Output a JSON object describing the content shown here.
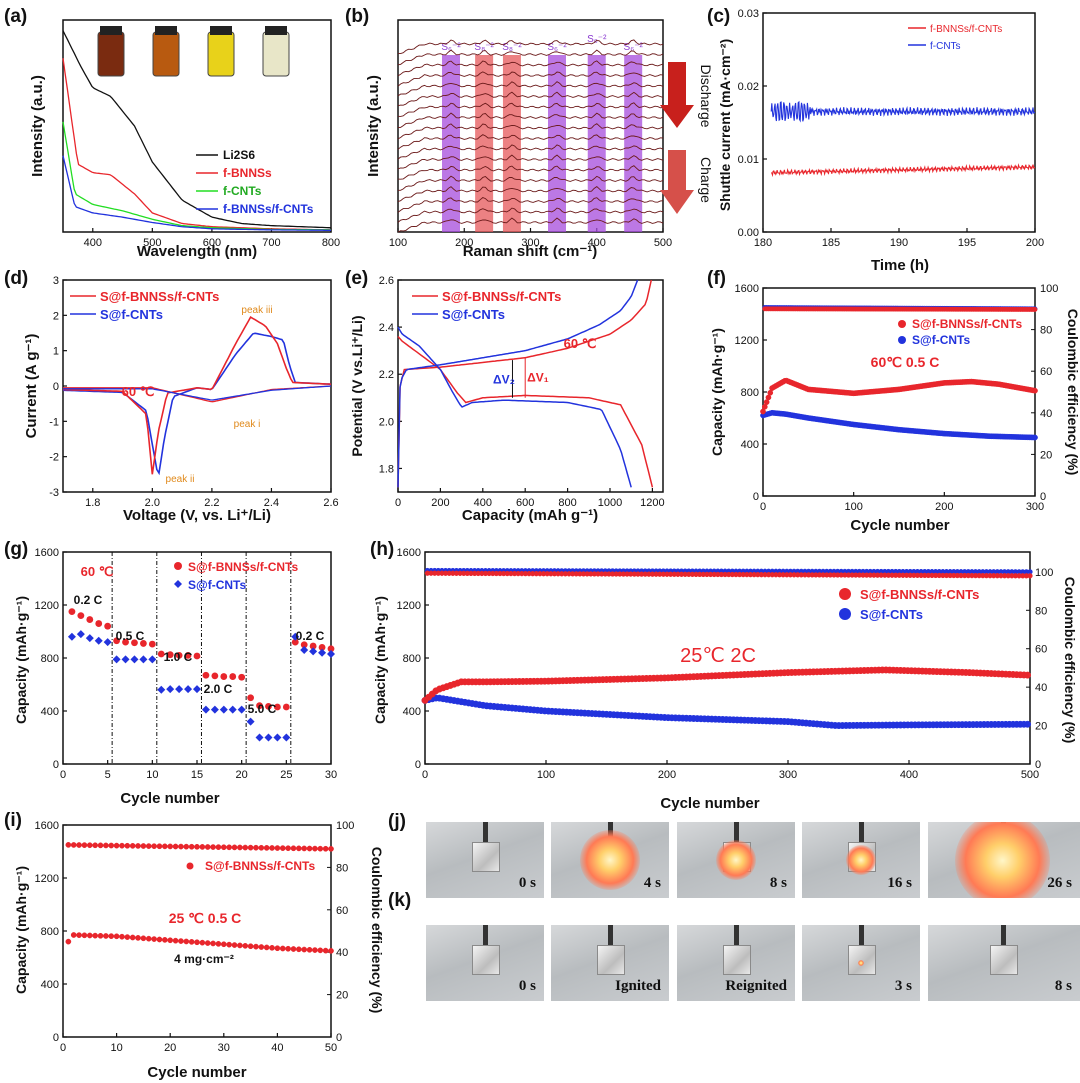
{
  "panels": {
    "a": {
      "label": "(a)",
      "xlabel": "Wavelength (nm)",
      "ylabel": "Intensity (a.u.)",
      "xticks": [
        "400",
        "500",
        "600",
        "700",
        "800"
      ],
      "legend": [
        "Li2S6",
        "f-BNNSs",
        "f-CNTs",
        "f-BNNSs/f-CNTs"
      ]
    },
    "b": {
      "label": "(b)",
      "xlabel": "Raman shift (cm⁻¹)",
      "ylabel": "Intensity (a.u.)",
      "xticks": [
        "100",
        "200",
        "300",
        "400",
        "500"
      ],
      "band_labels": [
        "S₆⁻²",
        "S₈⁻²",
        "S₈⁻²",
        "S₆⁻²",
        "S₆⁻²",
        "S₆⁻²"
      ],
      "arrow_labels": [
        "Discharge",
        "Charge"
      ]
    },
    "c": {
      "label": "(c)",
      "xlabel": "Time (h)",
      "ylabel": "Shuttle current (mA·cm⁻²)",
      "xticks": [
        "180",
        "185",
        "190",
        "195",
        "200"
      ],
      "yticks": [
        "0.00",
        "0.01",
        "0.02",
        "0.03"
      ],
      "legend": [
        "f-BNNSs/f-CNTs",
        "f-CNTs"
      ]
    },
    "d": {
      "label": "(d)",
      "xlabel": "Voltage (V, vs. Li⁺/Li)",
      "ylabel": "Current (A g⁻¹)",
      "xticks": [
        "1.8",
        "2.0",
        "2.2",
        "2.4",
        "2.6"
      ],
      "yticks": [
        "-3",
        "-2",
        "-1",
        "0",
        "1",
        "2",
        "3"
      ],
      "legend": [
        "S@f-BNNSs/f-CNTs",
        "S@f-CNTs"
      ],
      "temp": "60 ℃",
      "peaks": [
        "peak iii",
        "peak i",
        "peak ii"
      ]
    },
    "e": {
      "label": "(e)",
      "xlabel": "Capacity (mAh g⁻¹)",
      "ylabel": "Potential (V vs.Li⁺/Li)",
      "xticks": [
        "0",
        "200",
        "400",
        "600",
        "800",
        "1000",
        "1200"
      ],
      "yticks": [
        "1.8",
        "2.0",
        "2.2",
        "2.4",
        "2.6"
      ],
      "legend": [
        "S@f-BNNSs/f-CNTs",
        "S@f-CNTs"
      ],
      "temp": "60 ℃",
      "dv2": "ΔV₂",
      "dv1": "ΔV₁"
    },
    "f": {
      "label": "(f)",
      "xlabel": "Cycle number",
      "ylabel": "Capacity (mAh·g⁻¹)",
      "ylabel2": "Coulombic efficiency (%)",
      "xticks": [
        "0",
        "100",
        "200",
        "300"
      ],
      "yticks": [
        "0",
        "400",
        "800",
        "1200",
        "1600"
      ],
      "y2ticks": [
        "0",
        "20",
        "40",
        "60",
        "80",
        "100"
      ],
      "legend": [
        "S@f-BNNSs/f-CNTs",
        "S@f-CNTs"
      ],
      "condition": "60℃ 0.5 C"
    },
    "g": {
      "label": "(g)",
      "xlabel": "Cycle number",
      "ylabel": "Capacity (mAh·g⁻¹)",
      "xticks": [
        "0",
        "5",
        "10",
        "15",
        "20",
        "25",
        "30"
      ],
      "yticks": [
        "0",
        "400",
        "800",
        "1200",
        "1600"
      ],
      "legend": [
        "S@f-BNNSs/f-CNTs",
        "S@f-CNTs"
      ],
      "temp": "60 ℃",
      "rates": [
        "0.2 C",
        "0.5 C",
        "1.0 C",
        "2.0 C",
        "5.0 C",
        "0.2 C"
      ]
    },
    "h": {
      "label": "(h)",
      "xlabel": "Cycle number",
      "ylabel": "Capacity (mAh·g⁻¹)",
      "ylabel2": "Coulombic efficiency (%)",
      "xticks": [
        "0",
        "100",
        "200",
        "300",
        "400",
        "500"
      ],
      "yticks": [
        "0",
        "400",
        "800",
        "1200",
        "1600"
      ],
      "y2ticks": [
        "0",
        "20",
        "40",
        "60",
        "80",
        "100"
      ],
      "legend": [
        "S@f-BNNSs/f-CNTs",
        "S@f-CNTs"
      ],
      "condition": "25℃ 2C"
    },
    "i": {
      "label": "(i)",
      "xlabel": "Cycle number",
      "ylabel": "Capacity (mAh·g⁻¹)",
      "ylabel2": "Coulombic efficiency (%)",
      "xticks": [
        "0",
        "10",
        "20",
        "30",
        "40",
        "50"
      ],
      "yticks": [
        "0",
        "400",
        "800",
        "1200",
        "1600"
      ],
      "y2ticks": [
        "0",
        "20",
        "40",
        "60",
        "80",
        "100"
      ],
      "legend": [
        "S@f-BNNSs/f-CNTs"
      ],
      "condition": "25 ℃ 0.5 C",
      "loading": "4 mg·cm⁻²"
    },
    "j": {
      "label": "(j)",
      "captions": [
        "0 s",
        "4 s",
        "8 s",
        "16 s",
        "26 s"
      ]
    },
    "k": {
      "label": "(k)",
      "captions": [
        "0 s",
        "Ignited",
        "Reignited",
        "3 s",
        "8 s"
      ]
    }
  },
  "colors": {
    "red": "#e8262c",
    "blue": "#2233dd",
    "green": "#22dd22",
    "black": "#111111",
    "purple": "#a64bdc",
    "salmon": "#e5575a"
  },
  "chart_data": [
    {
      "id": "a",
      "type": "line",
      "xlim": [
        350,
        800
      ],
      "series": [
        {
          "name": "Li2S6",
          "x": [
            350,
            380,
            400,
            430,
            470,
            500,
            550,
            600,
            650,
            700,
            800
          ],
          "y": [
            0.95,
            0.78,
            0.68,
            0.64,
            0.5,
            0.33,
            0.15,
            0.07,
            0.04,
            0.03,
            0.02
          ]
        },
        {
          "name": "f-BNNSs",
          "x": [
            350,
            375,
            400,
            430,
            470,
            500,
            550,
            600,
            700,
            800
          ],
          "y": [
            0.82,
            0.32,
            0.28,
            0.27,
            0.18,
            0.09,
            0.04,
            0.025,
            0.015,
            0.01
          ]
        },
        {
          "name": "f-CNTs",
          "x": [
            350,
            370,
            400,
            450,
            500,
            550,
            600,
            700,
            800
          ],
          "y": [
            0.52,
            0.18,
            0.13,
            0.1,
            0.06,
            0.03,
            0.02,
            0.012,
            0.01
          ]
        },
        {
          "name": "f-BNNSs/f-CNTs",
          "x": [
            350,
            370,
            400,
            450,
            500,
            550,
            600,
            700,
            800
          ],
          "y": [
            0.36,
            0.12,
            0.09,
            0.07,
            0.045,
            0.025,
            0.015,
            0.01,
            0.008
          ]
        }
      ]
    },
    {
      "id": "b",
      "type": "line",
      "xlim": [
        100,
        500
      ],
      "traces": 18,
      "bands_x": [
        180,
        230,
        272,
        340,
        400,
        455
      ]
    },
    {
      "id": "c",
      "type": "line",
      "xlim": [
        180,
        200
      ],
      "ylim": [
        0,
        0.03
      ],
      "series": [
        {
          "name": "f-BNNSs/f-CNTs",
          "mean": 0.0085
        },
        {
          "name": "f-CNTs",
          "mean": 0.0165
        }
      ]
    },
    {
      "id": "d",
      "type": "line",
      "xlim": [
        1.7,
        2.6
      ],
      "ylim": [
        -3,
        3
      ],
      "series": [
        {
          "name": "S@f-BNNSs/f-CNTs",
          "x": [
            1.7,
            1.9,
            1.98,
            2.0,
            2.02,
            2.05,
            2.15,
            2.2,
            2.28,
            2.33,
            2.38,
            2.42,
            2.45,
            2.47,
            2.6
          ],
          "y": [
            -0.1,
            -0.15,
            -0.8,
            -2.5,
            -1.3,
            -0.2,
            -0.05,
            -0.1,
            1.2,
            1.95,
            1.7,
            1.2,
            0.5,
            0.1,
            0.05
          ]
        },
        {
          "name": "S@f-CNTs",
          "x": [
            1.7,
            1.9,
            1.98,
            2.02,
            2.04,
            2.07,
            2.15,
            2.2,
            2.28,
            2.34,
            2.4,
            2.44,
            2.46,
            2.48,
            2.6
          ],
          "y": [
            -0.12,
            -0.18,
            -0.7,
            -2.6,
            -1.5,
            -0.3,
            -0.05,
            -0.1,
            0.9,
            1.5,
            1.4,
            1.3,
            0.6,
            0.1,
            0.05
          ]
        }
      ]
    },
    {
      "id": "e",
      "type": "line",
      "xlim": [
        0,
        1250
      ],
      "ylim": [
        1.7,
        2.6
      ],
      "series": [
        {
          "name": "S@f-BNNSs/f-CNTs",
          "discharge": {
            "x": [
              0,
              20,
              80,
              200,
              280,
              320,
              400,
              600,
              900,
              1050,
              1150,
              1200
            ],
            "y": [
              2.36,
              2.34,
              2.3,
              2.22,
              2.12,
              2.08,
              2.1,
              2.11,
              2.1,
              2.07,
              1.9,
              1.72
            ]
          },
          "charge": {
            "x": [
              0,
              10,
              30,
              200,
              400,
              600,
              800,
              1000,
              1100,
              1170,
              1195
            ],
            "y": [
              1.72,
              2.15,
              2.22,
              2.23,
              2.25,
              2.27,
              2.31,
              2.37,
              2.43,
              2.5,
              2.6
            ]
          }
        },
        {
          "name": "S@f-CNTs",
          "discharge": {
            "x": [
              0,
              20,
              100,
              200,
              260,
              300,
              350,
              500,
              800,
              960,
              1050,
              1100
            ],
            "y": [
              2.4,
              2.37,
              2.32,
              2.22,
              2.12,
              2.06,
              2.08,
              2.09,
              2.08,
              2.05,
              1.88,
              1.72
            ]
          },
          "charge": {
            "x": [
              0,
              10,
              40,
              200,
              400,
              600,
              800,
              950,
              1050,
              1100,
              1130
            ],
            "y": [
              1.72,
              2.17,
              2.22,
              2.24,
              2.27,
              2.3,
              2.35,
              2.41,
              2.47,
              2.53,
              2.6
            ]
          }
        }
      ]
    },
    {
      "id": "f",
      "type": "scatter",
      "xlim": [
        0,
        300
      ],
      "ylim": [
        0,
        1600
      ],
      "series": [
        {
          "name": "S@f-BNNSs/f-CNTs",
          "x": [
            0,
            10,
            25,
            50,
            100,
            150,
            200,
            230,
            260,
            300
          ],
          "y": [
            650,
            830,
            890,
            820,
            790,
            820,
            870,
            880,
            860,
            810
          ]
        },
        {
          "name": "S@f-CNTs",
          "x": [
            0,
            10,
            25,
            50,
            100,
            150,
            200,
            250,
            300
          ],
          "y": [
            620,
            640,
            630,
            600,
            550,
            510,
            480,
            460,
            450
          ]
        }
      ],
      "ce": {
        "S@f-BNNSs/f-CNTs": 99,
        "S@f-CNTs": 100
      }
    },
    {
      "id": "g",
      "type": "scatter",
      "xlim": [
        0,
        30
      ],
      "ylim": [
        0,
        1600
      ],
      "series": [
        {
          "name": "S@f-BNNSs/f-CNTs",
          "x": [
            1,
            2,
            3,
            4,
            5,
            6,
            7,
            8,
            9,
            10,
            11,
            12,
            13,
            14,
            15,
            16,
            17,
            18,
            19,
            20,
            21,
            22,
            23,
            24,
            25,
            26,
            27,
            28,
            29,
            30
          ],
          "y": [
            1150,
            1120,
            1090,
            1060,
            1040,
            930,
            920,
            915,
            910,
            905,
            830,
            825,
            820,
            820,
            815,
            670,
            665,
            660,
            660,
            655,
            500,
            440,
            435,
            430,
            430,
            920,
            900,
            890,
            880,
            870
          ]
        },
        {
          "name": "S@f-CNTs",
          "x": [
            1,
            2,
            3,
            4,
            5,
            6,
            7,
            8,
            9,
            10,
            11,
            12,
            13,
            14,
            15,
            16,
            17,
            18,
            19,
            20,
            21,
            22,
            23,
            24,
            25,
            26,
            27,
            28,
            29,
            30
          ],
          "y": [
            960,
            980,
            950,
            930,
            920,
            790,
            790,
            790,
            790,
            790,
            560,
            565,
            565,
            565,
            565,
            410,
            410,
            410,
            410,
            410,
            320,
            200,
            200,
            200,
            200,
            960,
            860,
            850,
            840,
            830
          ]
        }
      ]
    },
    {
      "id": "h",
      "type": "scatter",
      "xlim": [
        0,
        500
      ],
      "ylim": [
        0,
        1600
      ],
      "series": [
        {
          "name": "S@f-BNNSs/f-CNTs",
          "x": [
            0,
            10,
            30,
            50,
            100,
            200,
            300,
            380,
            450,
            500
          ],
          "y": [
            480,
            560,
            620,
            620,
            625,
            650,
            690,
            710,
            690,
            670
          ]
        },
        {
          "name": "S@f-CNTs",
          "x": [
            0,
            10,
            30,
            50,
            100,
            200,
            300,
            340,
            400,
            500
          ],
          "y": [
            480,
            500,
            470,
            440,
            400,
            350,
            320,
            290,
            295,
            300
          ]
        }
      ],
      "ce": {
        "S@f-BNNSs/f-CNTs": 99,
        "S@f-CNTs": 100
      }
    },
    {
      "id": "i",
      "type": "scatter",
      "xlim": [
        0,
        50
      ],
      "ylim": [
        0,
        1600
      ],
      "series": [
        {
          "name": "S@f-BNNSs/f-CNTs",
          "x": [
            1,
            2,
            10,
            20,
            30,
            40,
            50
          ],
          "y": [
            720,
            770,
            760,
            730,
            700,
            670,
            650
          ]
        }
      ],
      "ce": {
        "S@f-BNNSs/f-CNTs": 99
      }
    }
  ]
}
